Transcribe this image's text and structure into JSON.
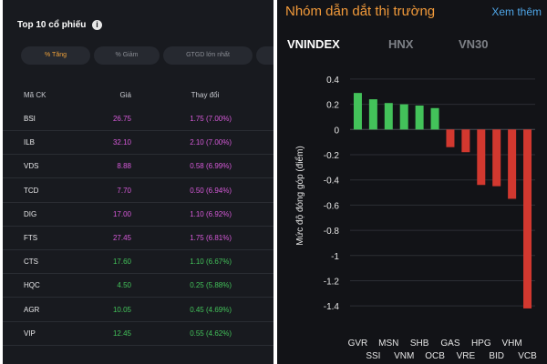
{
  "left": {
    "title": "Top 10 cổ phiếu",
    "filters": [
      "% Tăng",
      "% Giảm",
      "GTGD lớn nhất"
    ],
    "columns": {
      "code": "Mã CK",
      "price": "Giá",
      "change": "Thay đổi"
    },
    "rows": [
      {
        "code": "BSI",
        "price": "26.75",
        "change": "1.75 (7.00%)",
        "status": "ceiling"
      },
      {
        "code": "ILB",
        "price": "32.10",
        "change": "2.10 (7.00%)",
        "status": "ceiling"
      },
      {
        "code": "VDS",
        "price": "8.88",
        "change": "0.58 (6.99%)",
        "status": "ceiling"
      },
      {
        "code": "TCD",
        "price": "7.70",
        "change": "0.50 (6.94%)",
        "status": "ceiling"
      },
      {
        "code": "DIG",
        "price": "17.00",
        "change": "1.10 (6.92%)",
        "status": "ceiling"
      },
      {
        "code": "FTS",
        "price": "27.45",
        "change": "1.75 (6.81%)",
        "status": "ceiling"
      },
      {
        "code": "CTS",
        "price": "17.60",
        "change": "1.10 (6.67%)",
        "status": "up"
      },
      {
        "code": "HQC",
        "price": "4.50",
        "change": "0.25 (5.88%)",
        "status": "up"
      },
      {
        "code": "AGR",
        "price": "10.05",
        "change": "0.45 (4.69%)",
        "status": "up"
      },
      {
        "code": "VIP",
        "price": "12.45",
        "change": "0.55 (4.62%)",
        "status": "up"
      }
    ]
  },
  "right": {
    "title": "Nhóm dẫn dắt thị trường",
    "see_more": "Xem thêm",
    "tabs": [
      "VNINDEX",
      "HNX",
      "VN30"
    ]
  },
  "colors": {
    "ceiling": "#d65ad9",
    "up": "#43c25a",
    "down": "#d2382f",
    "accent": "#f29a3a",
    "link": "#4fa6e8"
  },
  "icons": {
    "info": "info-icon"
  },
  "chart_data": {
    "type": "bar",
    "ylabel": "Mức độ đóng góp (điểm)",
    "ylim": [
      -1.5,
      0.45
    ],
    "yticks": [
      0.4,
      0.2,
      0,
      -0.2,
      -0.4,
      -0.6,
      -0.8,
      -1,
      -1.2,
      -1.4
    ],
    "grid": true,
    "categories": [
      "GVR",
      "SSI",
      "MSN",
      "VNM",
      "SHB",
      "OCB",
      "GAS",
      "VRE",
      "HPG",
      "BID",
      "VHM",
      "VCB"
    ],
    "values": [
      0.29,
      0.24,
      0.21,
      0.2,
      0.19,
      0.17,
      -0.14,
      -0.18,
      -0.44,
      -0.45,
      -0.55,
      -1.42
    ]
  }
}
